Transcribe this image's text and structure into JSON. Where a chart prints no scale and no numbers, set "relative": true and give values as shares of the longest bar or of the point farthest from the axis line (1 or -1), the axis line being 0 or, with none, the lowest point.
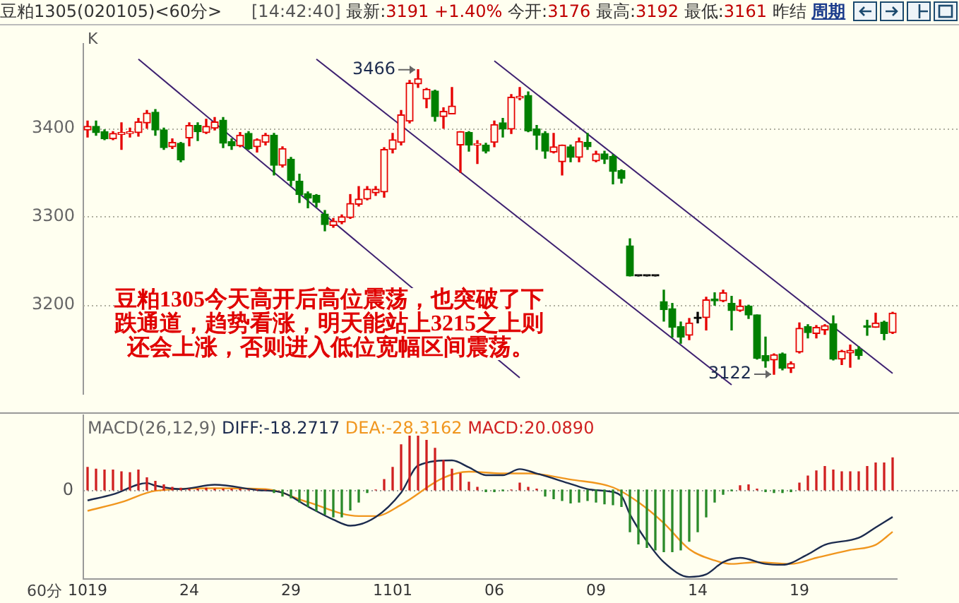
{
  "chart_data": [
    {
      "type": "candlestick",
      "title": "豆粕1305(020105)<60分>",
      "subtitle": "[14:42:40] 最新:3191 +1.40% 今开:3176 最高:3192 最低:3161 昨结",
      "ylabel": "K",
      "annotations": [
        "周期",
        "豆粕1305今天高开后高位震荡，也突破了下",
        "跌通道，趋势看涨，明天能站上3215之上则",
        "还会上涨，否则进入低位宽幅区间震荡。",
        "3466",
        "3122"
      ],
      "categories": [
        "1019",
        null,
        null,
        null,
        null,
        null,
        null,
        null,
        null,
        null,
        null,
        null,
        "24",
        null,
        null,
        null,
        null,
        null,
        null,
        null,
        null,
        null,
        null,
        null,
        "29",
        null,
        null,
        null,
        null,
        null,
        null,
        null,
        null,
        null,
        null,
        null,
        "1101",
        null,
        null,
        null,
        null,
        null,
        null,
        null,
        null,
        null,
        null,
        null,
        "06",
        null,
        null,
        null,
        null,
        null,
        null,
        null,
        null,
        null,
        null,
        null,
        "09",
        null,
        null,
        null,
        null,
        null,
        null,
        null,
        null,
        null,
        null,
        null,
        "14",
        null,
        null,
        null,
        null,
        null,
        null,
        null,
        null,
        null,
        null,
        null,
        "19",
        null,
        null,
        null,
        null,
        null,
        null,
        null,
        null,
        null,
        null,
        null
      ],
      "ohlc": [
        [
          3398,
          3408,
          3390,
          3402
        ],
        [
          3402,
          3408,
          3392,
          3395
        ],
        [
          3396,
          3398,
          3387,
          3388
        ],
        [
          3388,
          3396,
          3387,
          3394
        ],
        [
          3393,
          3406,
          3376,
          3395
        ],
        [
          3394,
          3400,
          3390,
          3396
        ],
        [
          3395,
          3411,
          3391,
          3407
        ],
        [
          3406,
          3420,
          3400,
          3417
        ],
        [
          3418,
          3421,
          3392,
          3398
        ],
        [
          3398,
          3400,
          3376,
          3378
        ],
        [
          3379,
          3388,
          3377,
          3384
        ],
        [
          3383,
          3384,
          3362,
          3364
        ],
        [
          3389,
          3406,
          3380,
          3403
        ],
        [
          3403,
          3406,
          3386,
          3396
        ],
        [
          3395,
          3410,
          3394,
          3402
        ],
        [
          3400,
          3412,
          3398,
          3407
        ],
        [
          3409,
          3412,
          3378,
          3383
        ],
        [
          3385,
          3388,
          3376,
          3380
        ],
        [
          3380,
          3395,
          3379,
          3392
        ],
        [
          3394,
          3396,
          3376,
          3377
        ],
        [
          3379,
          3388,
          3373,
          3387
        ],
        [
          3384,
          3394,
          3381,
          3392
        ],
        [
          3392,
          3394,
          3347,
          3358
        ],
        [
          3358,
          3379,
          3356,
          3377
        ],
        [
          3365,
          3367,
          3335,
          3341
        ],
        [
          3340,
          3348,
          3316,
          3325
        ],
        [
          3326,
          3328,
          3310,
          3321
        ],
        [
          3324,
          3325,
          3311,
          3316
        ],
        [
          3303,
          3307,
          3284,
          3291
        ],
        [
          3290,
          3298,
          3288,
          3295
        ],
        [
          3294,
          3302,
          3292,
          3300
        ],
        [
          3299,
          3325,
          3298,
          3315
        ],
        [
          3314,
          3334,
          3312,
          3320
        ],
        [
          3320,
          3334,
          3319,
          3331
        ],
        [
          3327,
          3334,
          3324,
          3331
        ],
        [
          3328,
          3378,
          3322,
          3376
        ],
        [
          3376,
          3394,
          3372,
          3387
        ],
        [
          3384,
          3420,
          3381,
          3415
        ],
        [
          3408,
          3454,
          3406,
          3451
        ],
        [
          3450,
          3466,
          3446,
          3456
        ],
        [
          3433,
          3445,
          3423,
          3444
        ],
        [
          3442,
          3443,
          3408,
          3413
        ],
        [
          3413,
          3423,
          3400,
          3419
        ],
        [
          3416,
          3446,
          3416,
          3425
        ],
        [
          3381,
          3396,
          3350,
          3396
        ],
        [
          3395,
          3396,
          3374,
          3381
        ],
        [
          3381,
          3386,
          3360,
          3382
        ],
        [
          3381,
          3383,
          3372,
          3374
        ],
        [
          3384,
          3408,
          3379,
          3404
        ],
        [
          3406,
          3411,
          3390,
          3399
        ],
        [
          3399,
          3438,
          3394,
          3435
        ],
        [
          3434,
          3446,
          3432,
          3436
        ],
        [
          3437,
          3441,
          3396,
          3397
        ],
        [
          3399,
          3403,
          3376,
          3392
        ],
        [
          3394,
          3396,
          3366,
          3374
        ],
        [
          3373,
          3394,
          3372,
          3379
        ],
        [
          3362,
          3381,
          3347,
          3381
        ],
        [
          3379,
          3381,
          3362,
          3367
        ],
        [
          3367,
          3389,
          3362,
          3385
        ],
        [
          3384,
          3394,
          3376,
          3379
        ],
        [
          3363,
          3374,
          3362,
          3371
        ],
        [
          3371,
          3374,
          3360,
          3365
        ],
        [
          3368,
          3370,
          3337,
          3351
        ],
        [
          3352,
          3353,
          3338,
          3343
        ],
        [
          3267,
          3275,
          3233,
          3233
        ],
        [
          3233,
          3233,
          3233,
          3233
        ],
        [
          3233,
          3233,
          3233,
          3233
        ],
        [
          3233,
          3233,
          3233,
          3233
        ],
        [
          3204,
          3217,
          3182,
          3195
        ],
        [
          3196,
          3202,
          3164,
          3175
        ],
        [
          3176,
          3181,
          3157,
          3164
        ],
        [
          3166,
          3185,
          3161,
          3180
        ],
        [
          3185,
          3192,
          3180,
          3185
        ],
        [
          3186,
          3209,
          3172,
          3206
        ],
        [
          3207,
          3214,
          3200,
          3205
        ],
        [
          3205,
          3217,
          3204,
          3214
        ],
        [
          3202,
          3210,
          3172,
          3194
        ],
        [
          3194,
          3206,
          3193,
          3199
        ],
        [
          3199,
          3200,
          3185,
          3189
        ],
        [
          3189,
          3189,
          3139,
          3140
        ],
        [
          3143,
          3164,
          3130,
          3137
        ],
        [
          3138,
          3145,
          3122,
          3144
        ],
        [
          3145,
          3146,
          3127,
          3129
        ],
        [
          3129,
          3136,
          3124,
          3134
        ],
        [
          3147,
          3180,
          3146,
          3174
        ],
        [
          3176,
          3178,
          3163,
          3169
        ],
        [
          3168,
          3177,
          3163,
          3175
        ],
        [
          3172,
          3178,
          3167,
          3177
        ],
        [
          3179,
          3188,
          3138,
          3139
        ],
        [
          3139,
          3149,
          3133,
          3148
        ],
        [
          3146,
          3155,
          3130,
          3149
        ],
        [
          3150,
          3153,
          3139,
          3143
        ],
        [
          3177,
          3183,
          3166,
          3175
        ],
        [
          3175,
          3191,
          3175,
          3180
        ],
        [
          3181,
          3182,
          3161,
          3168
        ],
        [
          3169,
          3192,
          3168,
          3191
        ]
      ],
      "colors": [
        "#e60000",
        "#008000",
        "#008000",
        "#e60000",
        "#e60000",
        "#e60000",
        "#e60000",
        "#e60000",
        "#008000",
        "#008000",
        "#e60000",
        "#008000",
        "#e60000",
        "#008000",
        "#e60000",
        "#e60000",
        "#008000",
        "#008000",
        "#e60000",
        "#008000",
        "#e60000",
        "#e60000",
        "#008000",
        "#e60000",
        "#008000",
        "#008000",
        "#008000",
        "#008000",
        "#008000",
        "#e60000",
        "#e60000",
        "#e60000",
        "#e60000",
        "#e60000",
        "#e60000",
        "#e60000",
        "#e60000",
        "#e60000",
        "#e60000",
        "#e60000",
        "#e60000",
        "#008000",
        "#e60000",
        "#e60000",
        "#e60000",
        "#008000",
        "#e60000",
        "#008000",
        "#e60000",
        "#008000",
        "#e60000",
        "#e60000",
        "#008000",
        "#008000",
        "#008000",
        "#e60000",
        "#e60000",
        "#008000",
        "#e60000",
        "#008000",
        "#e60000",
        "#008000",
        "#008000",
        "#008000",
        "#008000",
        "#000000",
        "#000000",
        "#000000",
        "#008000",
        "#008000",
        "#008000",
        "#e60000",
        "#000000",
        "#e60000",
        "#008000",
        "#e60000",
        "#008000",
        "#e60000",
        "#008000",
        "#008000",
        "#008000",
        "#e60000",
        "#008000",
        "#e60000",
        "#e60000",
        "#008000",
        "#e60000",
        "#e60000",
        "#008000",
        "#e60000",
        "#e60000",
        "#008000",
        "#008000",
        "#e60000",
        "#008000",
        "#e60000"
      ],
      "ylim": [
        3100,
        3495
      ],
      "yticks": [
        3200,
        3300,
        3400
      ],
      "grid": "y",
      "tick_labels": "y",
      "series": [
        {
          "type": "line",
          "color": "#3d2070",
          "values": [
            null,
            null,
            null,
            null,
            null,
            null,
            3478,
            null,
            null,
            null,
            null,
            null,
            null,
            null,
            null,
            null,
            null,
            null,
            null,
            null,
            null,
            null,
            null,
            null,
            null,
            null,
            null,
            null,
            null,
            null,
            null,
            null,
            null,
            null,
            null,
            null,
            null,
            null,
            null,
            null,
            null,
            null,
            null,
            null,
            null,
            null,
            null,
            null,
            null,
            null,
            null,
            3118,
            null,
            null,
            null,
            null,
            null,
            null,
            null,
            null,
            null,
            null,
            null,
            null,
            null,
            null,
            null,
            null,
            null,
            null,
            null,
            null,
            null,
            null,
            null,
            null,
            null,
            null,
            null,
            null,
            null,
            null,
            null,
            null,
            null,
            null,
            null,
            null,
            null,
            null,
            null,
            null,
            null,
            null,
            null,
            null
          ]
        },
        {
          "type": "line",
          "color": "#3d2070",
          "values": [
            null,
            null,
            null,
            null,
            null,
            null,
            null,
            null,
            null,
            null,
            null,
            null,
            null,
            null,
            null,
            null,
            null,
            null,
            null,
            null,
            null,
            null,
            null,
            null,
            null,
            null,
            null,
            3478,
            null,
            null,
            null,
            null,
            null,
            null,
            null,
            null,
            null,
            null,
            null,
            null,
            null,
            null,
            null,
            null,
            null,
            null,
            null,
            null,
            null,
            null,
            null,
            null,
            null,
            null,
            null,
            null,
            null,
            null,
            null,
            null,
            null,
            null,
            null,
            null,
            null,
            null,
            null,
            null,
            null,
            null,
            null,
            null,
            null,
            null,
            null,
            null,
            3110,
            null,
            null,
            null,
            null,
            null,
            null,
            null,
            null,
            null,
            null,
            null,
            null,
            null,
            null,
            null,
            null,
            null,
            null,
            null
          ]
        },
        {
          "type": "line",
          "color": "#3d2070",
          "values": [
            null,
            null,
            null,
            null,
            null,
            null,
            null,
            null,
            null,
            null,
            null,
            null,
            null,
            null,
            null,
            null,
            null,
            null,
            null,
            null,
            null,
            null,
            null,
            null,
            null,
            null,
            null,
            null,
            null,
            null,
            null,
            null,
            null,
            null,
            null,
            null,
            null,
            null,
            null,
            null,
            null,
            null,
            null,
            null,
            null,
            null,
            null,
            null,
            3476,
            null,
            null,
            null,
            null,
            null,
            null,
            null,
            null,
            null,
            null,
            null,
            null,
            null,
            null,
            null,
            null,
            null,
            null,
            null,
            null,
            null,
            null,
            null,
            null,
            null,
            null,
            null,
            null,
            null,
            null,
            null,
            null,
            null,
            null,
            null,
            null,
            null,
            null,
            null,
            null,
            null,
            null,
            null,
            null,
            null,
            null,
            3123
          ]
        }
      ]
    },
    {
      "type": "bar",
      "title": "MACD(26,12,9)",
      "xlabel": "60分",
      "relative": true,
      "legend": "top left",
      "categories": [
        "1019",
        null,
        null,
        null,
        null,
        null,
        null,
        null,
        null,
        null,
        null,
        null,
        "24",
        null,
        null,
        null,
        null,
        null,
        null,
        null,
        null,
        null,
        null,
        null,
        "29",
        null,
        null,
        null,
        null,
        null,
        null,
        null,
        null,
        null,
        null,
        null,
        "1101",
        null,
        null,
        null,
        null,
        null,
        null,
        null,
        null,
        null,
        null,
        null,
        "06",
        null,
        null,
        null,
        null,
        null,
        null,
        null,
        null,
        null,
        null,
        null,
        "09",
        null,
        null,
        null,
        null,
        null,
        null,
        null,
        null,
        null,
        null,
        null,
        "14",
        null,
        null,
        null,
        null,
        null,
        null,
        null,
        null,
        null,
        null,
        null,
        "19",
        null,
        null,
        null,
        null,
        null,
        null,
        null,
        null,
        null,
        null,
        null
      ],
      "ref_lines": [
        {
          "axis": "y",
          "value": 0,
          "label": "0",
          "line_style": "dotted",
          "color": "#999999"
        }
      ],
      "series": [
        {
          "type": "line",
          "name": "DIFF:-18.2717",
          "color": "#1c2b4e",
          "values": [
            -0.12,
            null,
            null,
            -0.05,
            null,
            null,
            null,
            0.08,
            0.05,
            null,
            null,
            0.01,
            null,
            null,
            null,
            0.06,
            null,
            null,
            null,
            null,
            0,
            null,
            null,
            -0.03,
            null,
            null,
            -0.19,
            null,
            null,
            -0.34,
            null,
            -0.41,
            null,
            null,
            -0.31,
            null,
            null,
            -0.03,
            null,
            0.28,
            null,
            null,
            null,
            0.34,
            null,
            0.26,
            null,
            0.17,
            null,
            0.17,
            null,
            0.24,
            null,
            0.19,
            null,
            null,
            null,
            0.07,
            null,
            0.01,
            null,
            -0.01,
            null,
            -0.07,
            -0.28,
            null,
            -0.59,
            null,
            -0.83,
            null,
            null,
            -1,
            null,
            -0.97,
            null,
            -0.83,
            null,
            -0.78,
            null,
            null,
            -0.85,
            null,
            -0.86,
            null,
            null,
            -0.74,
            null,
            -0.63,
            null,
            null,
            null,
            -0.55,
            null,
            -0.43,
            null,
            -0.31
          ]
        },
        {
          "type": "line",
          "name": "DEA:-28.3162",
          "color": "#f0961e",
          "values": [
            -0.24,
            null,
            null,
            null,
            -0.14,
            null,
            null,
            null,
            -0.01,
            null,
            null,
            null,
            null,
            null,
            null,
            0.02,
            null,
            null,
            null,
            null,
            null,
            0.01,
            null,
            null,
            null,
            null,
            -0.14,
            null,
            null,
            null,
            null,
            null,
            -0.3,
            null,
            -0.3,
            null,
            null,
            -0.17,
            null,
            null,
            null,
            null,
            0.14,
            null,
            null,
            0.21,
            null,
            null,
            null,
            0.19,
            null,
            null,
            0.19,
            null,
            null,
            null,
            null,
            0.12,
            null,
            null,
            null,
            null,
            0.03,
            null,
            null,
            -0.14,
            null,
            null,
            -0.38,
            null,
            null,
            -0.68,
            null,
            null,
            -0.81,
            null,
            -0.85,
            null,
            null,
            -0.83,
            null,
            null,
            null,
            -0.85,
            null,
            null,
            -0.78,
            null,
            null,
            null,
            -0.69,
            null,
            null,
            -0.63,
            null,
            -0.48
          ]
        },
        {
          "type": "bar",
          "name": "MACD:20.0890",
          "values": [
            0.26,
            0.24,
            0.23,
            0.23,
            0.21,
            0.2,
            0.23,
            0.14,
            0.1,
            0.06,
            0.03,
            0.02,
            0.01,
            0.01,
            0.02,
            0.01,
            0.01,
            0.01,
            0.01,
            0,
            0,
            0,
            -0.03,
            -0.07,
            -0.09,
            -0.14,
            -0.19,
            -0.24,
            -0.28,
            -0.31,
            -0.31,
            -0.23,
            -0.14,
            -0.03,
            0,
            0.12,
            0.26,
            0.52,
            0.62,
            0.62,
            0.57,
            0.48,
            0.34,
            0.24,
            0.19,
            0.09,
            0.03,
            -0.02,
            -0.02,
            -0.01,
            0,
            0.08,
            0.03,
            0.01,
            -0.07,
            -0.1,
            -0.12,
            -0.15,
            -0.14,
            -0.12,
            -0.14,
            -0.16,
            -0.17,
            -0.19,
            -0.48,
            -0.62,
            -0.66,
            -0.69,
            -0.71,
            -0.71,
            -0.69,
            -0.59,
            -0.48,
            -0.31,
            -0.14,
            -0.05,
            -0.01,
            0.05,
            0.06,
            0.01,
            -0.02,
            -0.03,
            -0.03,
            -0.02,
            0.08,
            0.16,
            0.22,
            0.27,
            0.23,
            0.21,
            0.21,
            0.21,
            0.27,
            0.31,
            0.31,
            0.37
          ],
          "colors": [
            "#d02020",
            "#d02020",
            "#d02020",
            "#d02020",
            "#d02020",
            "#d02020",
            "#d02020",
            "#d02020",
            "#d02020",
            "#d02020",
            "#d02020",
            "#d02020",
            "#d02020",
            "#d02020",
            "#d02020",
            "#d02020",
            "#d02020",
            "#d02020",
            "#d02020",
            "#d02020",
            "#d02020",
            "#d02020",
            "#2a8a2a",
            "#2a8a2a",
            "#2a8a2a",
            "#2a8a2a",
            "#2a8a2a",
            "#2a8a2a",
            "#2a8a2a",
            "#2a8a2a",
            "#2a8a2a",
            "#2a8a2a",
            "#2a8a2a",
            "#2a8a2a",
            "#d02020",
            "#d02020",
            "#d02020",
            "#d02020",
            "#d02020",
            "#d02020",
            "#d02020",
            "#d02020",
            "#d02020",
            "#d02020",
            "#d02020",
            "#d02020",
            "#d02020",
            "#2a8a2a",
            "#2a8a2a",
            "#2a8a2a",
            "#d02020",
            "#d02020",
            "#d02020",
            "#d02020",
            "#2a8a2a",
            "#2a8a2a",
            "#2a8a2a",
            "#2a8a2a",
            "#2a8a2a",
            "#2a8a2a",
            "#2a8a2a",
            "#2a8a2a",
            "#2a8a2a",
            "#2a8a2a",
            "#2a8a2a",
            "#2a8a2a",
            "#2a8a2a",
            "#2a8a2a",
            "#2a8a2a",
            "#2a8a2a",
            "#2a8a2a",
            "#2a8a2a",
            "#2a8a2a",
            "#2a8a2a",
            "#2a8a2a",
            "#2a8a2a",
            "#2a8a2a",
            "#d02020",
            "#d02020",
            "#d02020",
            "#2a8a2a",
            "#2a8a2a",
            "#2a8a2a",
            "#2a8a2a",
            "#d02020",
            "#d02020",
            "#d02020",
            "#d02020",
            "#d02020",
            "#d02020",
            "#d02020",
            "#d02020",
            "#d02020",
            "#d02020",
            "#d02020",
            "#d02020"
          ]
        }
      ]
    }
  ]
}
